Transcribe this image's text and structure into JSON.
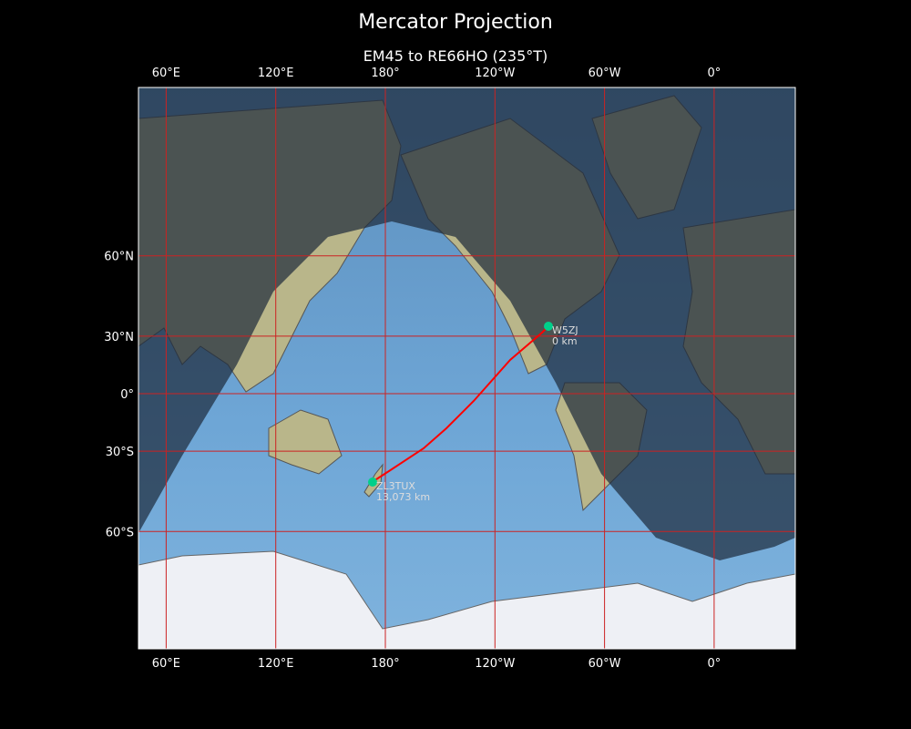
{
  "title": "Mercator Projection",
  "subtitle": "EM45 to RE66HO (235°T)",
  "map": {
    "projection": "Mercator",
    "center_longitude": 180,
    "lon_ticks": [
      {
        "lon": 60,
        "label": "60°E"
      },
      {
        "lon": 120,
        "label": "120°E"
      },
      {
        "lon": 180,
        "label": "180°"
      },
      {
        "lon": 240,
        "label": "120°W"
      },
      {
        "lon": 300,
        "label": "60°W"
      },
      {
        "lon": 360,
        "label": "0°"
      }
    ],
    "lat_ticks": [
      {
        "lat": 60,
        "label": "60°N"
      },
      {
        "lat": 30,
        "label": "30°N"
      },
      {
        "lat": 0,
        "label": "0°"
      },
      {
        "lat": -30,
        "label": "30°S"
      },
      {
        "lat": -60,
        "label": "60°S"
      }
    ],
    "grid_color": "#cc2222",
    "path_color": "#ff0000",
    "station_color": "#00d08a",
    "night_shading": true,
    "stations": [
      {
        "call": "W5ZJ",
        "distance": "0 km",
        "grid": "EM45"
      },
      {
        "call": "ZL3TUX",
        "distance": "13,073 km",
        "grid": "RE66HO"
      }
    ]
  }
}
